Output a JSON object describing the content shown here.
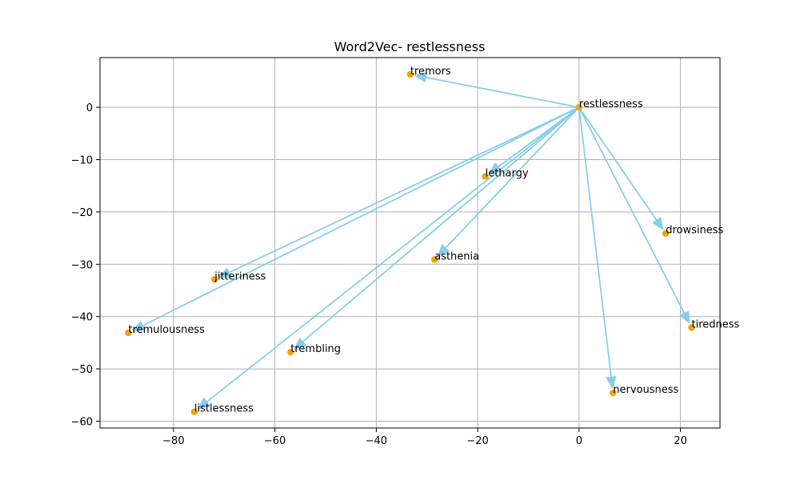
{
  "chart_data": {
    "type": "scatter",
    "title": "Word2Vec- restlessness",
    "xlabel": "",
    "ylabel": "",
    "xlim": [
      -94.5,
      27.8
    ],
    "ylim": [
      -61.3,
      9.5
    ],
    "xticks": [
      -80,
      -60,
      -40,
      -20,
      0,
      20
    ],
    "yticks": [
      0,
      -10,
      -20,
      -30,
      -40,
      -50,
      -60
    ],
    "xtick_labels": [
      "−80",
      "−60",
      "−40",
      "−20",
      "0",
      "20"
    ],
    "ytick_labels": [
      "0",
      "−10",
      "−20",
      "−30",
      "−40",
      "−50",
      "−60"
    ],
    "grid": true,
    "origin_word": "restlessness",
    "points": [
      {
        "label": "restlessness",
        "x": 0,
        "y": 0
      },
      {
        "label": "tremors",
        "x": -33.3,
        "y": 6.3
      },
      {
        "label": "lethargy",
        "x": -18.5,
        "y": -13.2
      },
      {
        "label": "drowsiness",
        "x": 17.1,
        "y": -24.1
      },
      {
        "label": "asthenia",
        "x": -28.5,
        "y": -29.1
      },
      {
        "label": "jitteriness",
        "x": -71.9,
        "y": -32.9
      },
      {
        "label": "tiredness",
        "x": 22.2,
        "y": -42.1
      },
      {
        "label": "tremulousness",
        "x": -88.9,
        "y": -43.1
      },
      {
        "label": "trembling",
        "x": -56.9,
        "y": -46.8
      },
      {
        "label": "nervousness",
        "x": 6.7,
        "y": -54.6
      },
      {
        "label": "listlessness",
        "x": -75.9,
        "y": -58.2
      }
    ],
    "colors": {
      "point": "#f0a30a",
      "arrow": "#87ceeb",
      "grid": "#b0b0b0",
      "axis": "#000000"
    }
  }
}
